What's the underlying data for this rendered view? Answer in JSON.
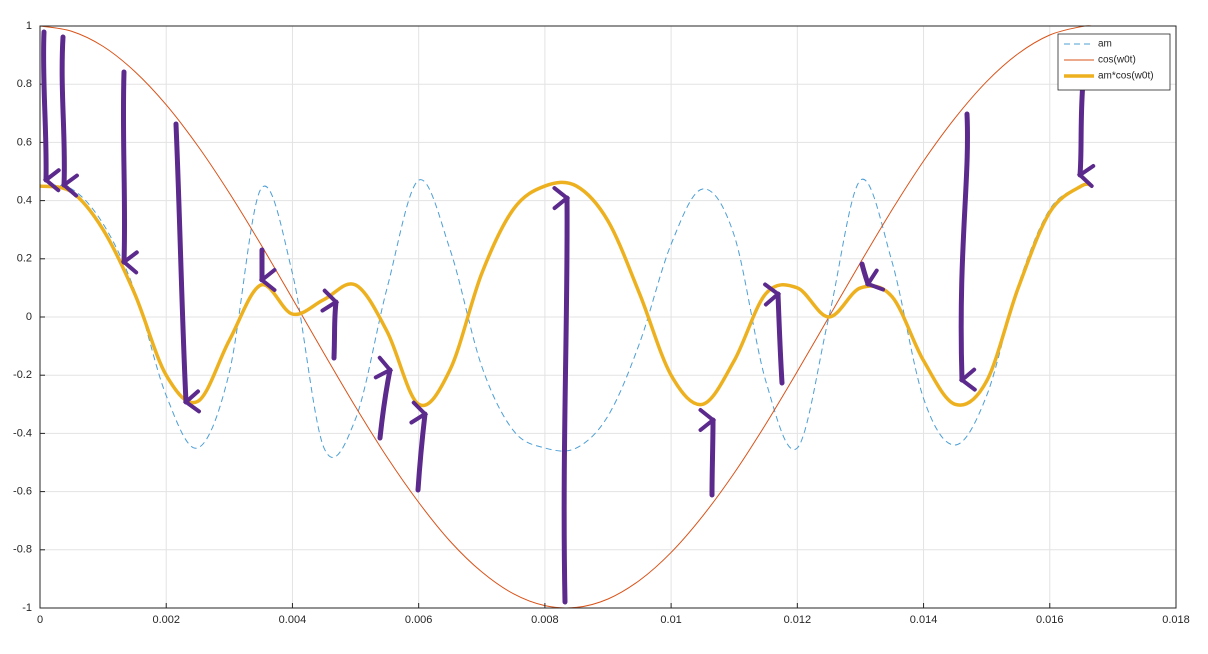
{
  "chart_data": {
    "type": "line",
    "x": [
      0,
      0.0005,
      0.001,
      0.0015,
      0.002,
      0.0025,
      0.003,
      0.0035,
      0.004,
      0.0045,
      0.005,
      0.0055,
      0.006,
      0.0065,
      0.007,
      0.0075,
      0.008,
      0.0085,
      0.009,
      0.0095,
      0.01,
      0.0105,
      0.011,
      0.0115,
      0.012,
      0.0125,
      0.013,
      0.0135,
      0.014,
      0.0145,
      0.015,
      0.0155,
      0.016,
      0.0165,
      0.01667
    ],
    "series": [
      {
        "name": "am",
        "color": "#4d9fd6",
        "dash": true,
        "width": 1,
        "values": [
          0.45,
          0.44,
          0.32,
          0.09,
          -0.27,
          -0.45,
          -0.19,
          0.44,
          0.15,
          -0.45,
          -0.35,
          0.1,
          0.47,
          0.23,
          -0.17,
          -0.39,
          -0.45,
          -0.45,
          -0.34,
          -0.09,
          0.25,
          0.44,
          0.28,
          -0.22,
          -0.45,
          0,
          0.47,
          0.19,
          -0.28,
          -0.44,
          -0.27,
          0.11,
          0.37,
          0.45,
          0.45
        ]
      },
      {
        "name": "cos(w0t)",
        "color": "#d95319",
        "dash": false,
        "width": 1,
        "values": [
          1,
          0.982,
          0.93,
          0.844,
          0.729,
          0.588,
          0.426,
          0.249,
          0.063,
          -0.125,
          -0.309,
          -0.482,
          -0.637,
          -0.771,
          -0.876,
          -0.951,
          -0.992,
          -0.998,
          -0.969,
          -0.905,
          -0.809,
          -0.684,
          -0.536,
          -0.368,
          -0.187,
          0,
          0.187,
          0.368,
          0.536,
          0.684,
          0.809,
          0.905,
          0.969,
          0.998,
          1
        ]
      },
      {
        "name": "am*cos(w0t)",
        "color": "#edb120",
        "dash": false,
        "width": 3.5,
        "values": [
          0.45,
          0.43,
          0.3,
          0.08,
          -0.2,
          -0.29,
          -0.08,
          0.11,
          0.01,
          0.06,
          0.11,
          -0.05,
          -0.3,
          -0.18,
          0.15,
          0.37,
          0.45,
          0.45,
          0.33,
          0.08,
          -0.2,
          -0.3,
          -0.15,
          0.08,
          0.1,
          0,
          0.1,
          0.07,
          -0.15,
          -0.3,
          -0.22,
          0.1,
          0.36,
          0.45,
          0.45
        ]
      }
    ],
    "xlim": [
      0,
      0.018
    ],
    "xticks": [
      0,
      0.002,
      0.004,
      0.006,
      0.008,
      0.01,
      0.012,
      0.014,
      0.016,
      0.018
    ],
    "ylim": [
      -1,
      1
    ],
    "yticks": [
      -1,
      -0.8,
      -0.6,
      -0.4,
      -0.2,
      0,
      0.2,
      0.4,
      0.6,
      0.8,
      1
    ],
    "grid": true,
    "legend": "top-right"
  }
}
